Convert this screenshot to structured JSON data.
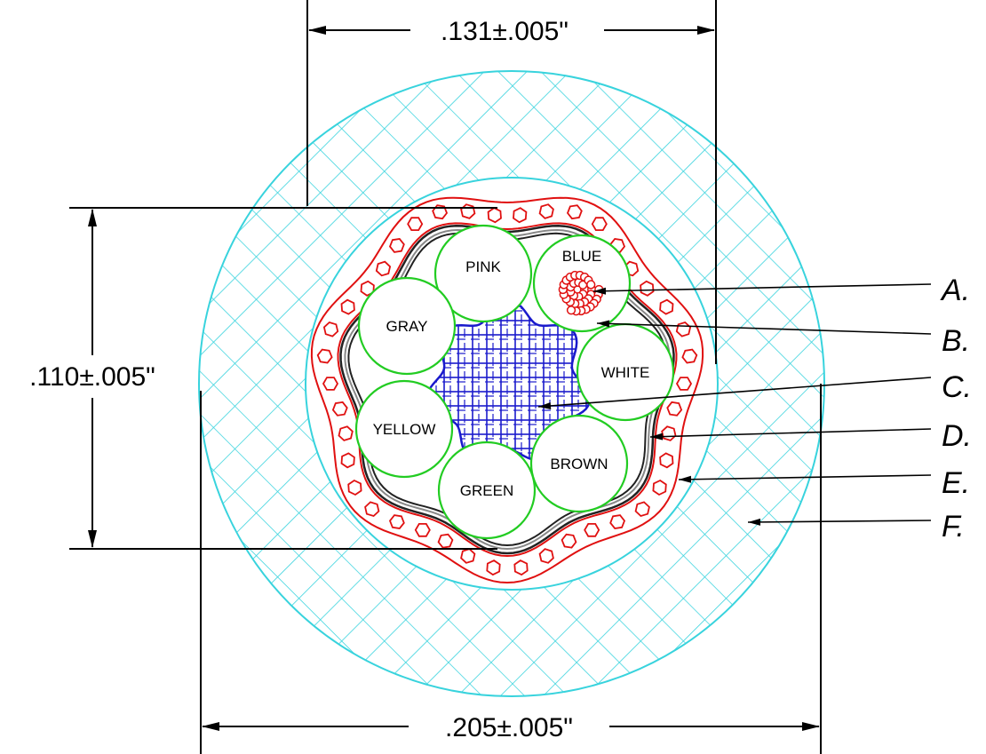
{
  "dimensions": {
    "top": ".131±.005\"",
    "left": ".110±.005\"",
    "bottom": ".205±.005\""
  },
  "wires": [
    {
      "label": "PINK"
    },
    {
      "label": "BLUE"
    },
    {
      "label": "GRAY"
    },
    {
      "label": "WHITE"
    },
    {
      "label": "YELLOW"
    },
    {
      "label": "BROWN"
    },
    {
      "label": "GREEN"
    }
  ],
  "callouts": [
    "A.",
    "B.",
    "C.",
    "D.",
    "E.",
    "F."
  ],
  "colors": {
    "outer_jacket": "#38d3dd",
    "red_layer": "#e01010",
    "wire_insulation": "#22cc22",
    "core_filler": "#1a1acc",
    "shield": "#333333",
    "line": "#000000"
  }
}
